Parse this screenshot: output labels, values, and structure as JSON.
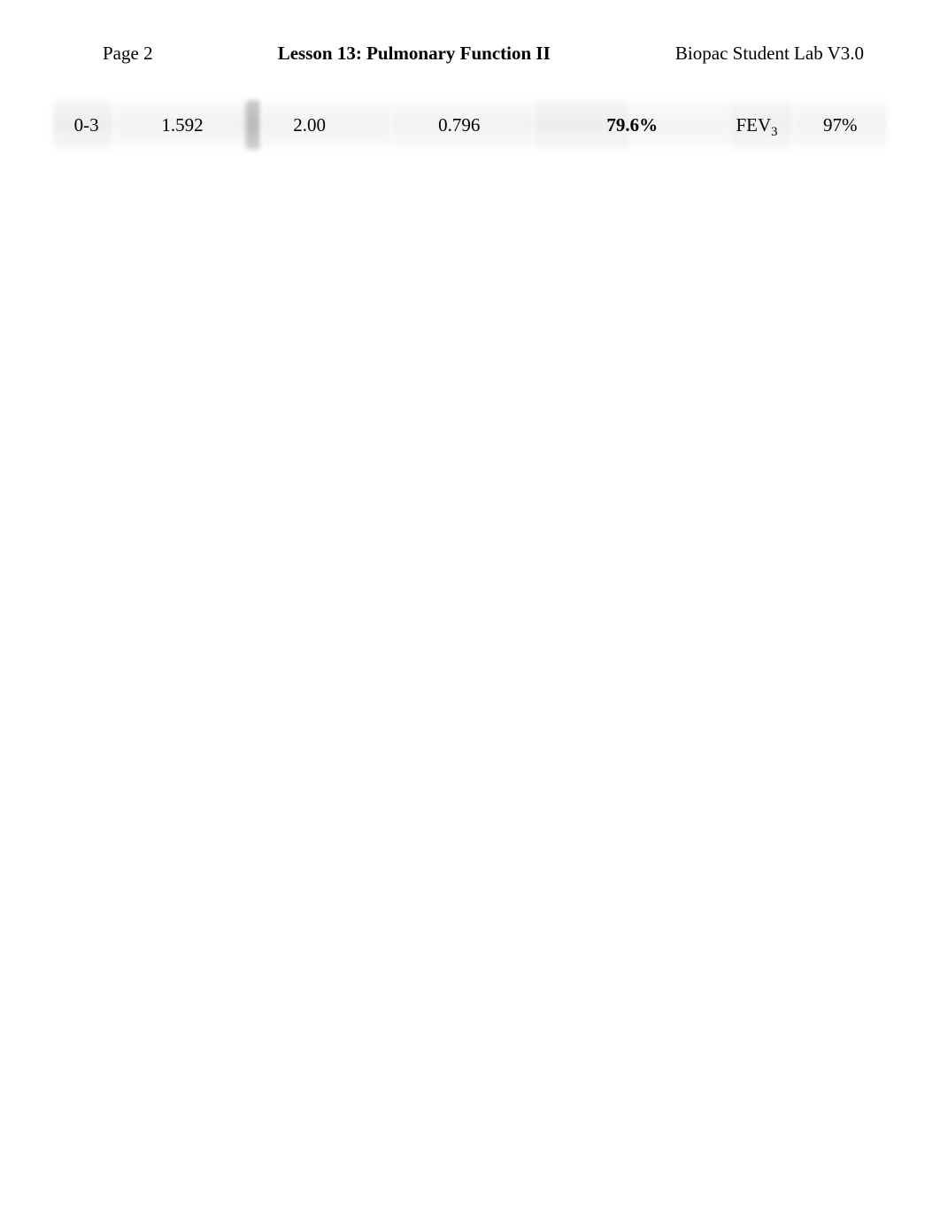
{
  "header": {
    "left": "Page 2",
    "center": "Lesson 13: Pulmonary Function II",
    "right": "Biopac Student Lab V3.0"
  },
  "row": {
    "c1": "0-3",
    "c2": "1.592",
    "c3": "2.00",
    "c4": "0.796",
    "c5": "79.6%",
    "c6_base": "FEV",
    "c6_sub": "3",
    "c7": "97%"
  },
  "styling": {
    "page_bg": "#ffffff",
    "text_color": "#000000",
    "header_fontsize": 21,
    "row_fontsize": 21,
    "blur_segments": [
      {
        "width_pct": 7.2,
        "bg": "linear-gradient(180deg, #f5f5f6 0%, #eceded 50%, #f7f8f8 100%)"
      },
      {
        "width_pct": 15.8,
        "bg": "linear-gradient(180deg, #fbfbfb 0%, #f1f2f2 50%, #fcfcfc 100%)"
      },
      {
        "width_pct": 2.0,
        "bg": "linear-gradient(180deg, #c9cacb 0%, #b9babb 50%, #cfd0d1 100%)"
      },
      {
        "width_pct": 15.4,
        "bg": "linear-gradient(180deg, #fbfbfb 0%, #f1f2f2 50%, #fcfcfc 100%)"
      },
      {
        "width_pct": 17.3,
        "bg": "linear-gradient(180deg, #fafafa 0%, #f1f2f2 50%, #fbfbfb 100%)"
      },
      {
        "width_pct": 11.6,
        "bg": "linear-gradient(180deg, #f6f6f7 0%, #ededee 50%, #f8f8f8 100%)"
      },
      {
        "width_pct": 11.7,
        "bg": "linear-gradient(180deg, #fbfbfb 0%, #f2f3f3 50%, #fcfcfc 100%)"
      },
      {
        "width_pct": 7.8,
        "bg": "linear-gradient(180deg, #f7f7f8 0%, #eeefef 50%, #f9f9f9 100%)"
      },
      {
        "width_pct": 11.2,
        "bg": "linear-gradient(180deg, #fafafa 0%, #f1f2f2 50%, #fbfbfb 100%)"
      }
    ],
    "cell_widths_pct": [
      8.0,
      15.0,
      15.5,
      20.4,
      21.1,
      8.8,
      11.2
    ],
    "bold_cells": [
      false,
      false,
      false,
      false,
      true,
      false,
      false
    ]
  }
}
